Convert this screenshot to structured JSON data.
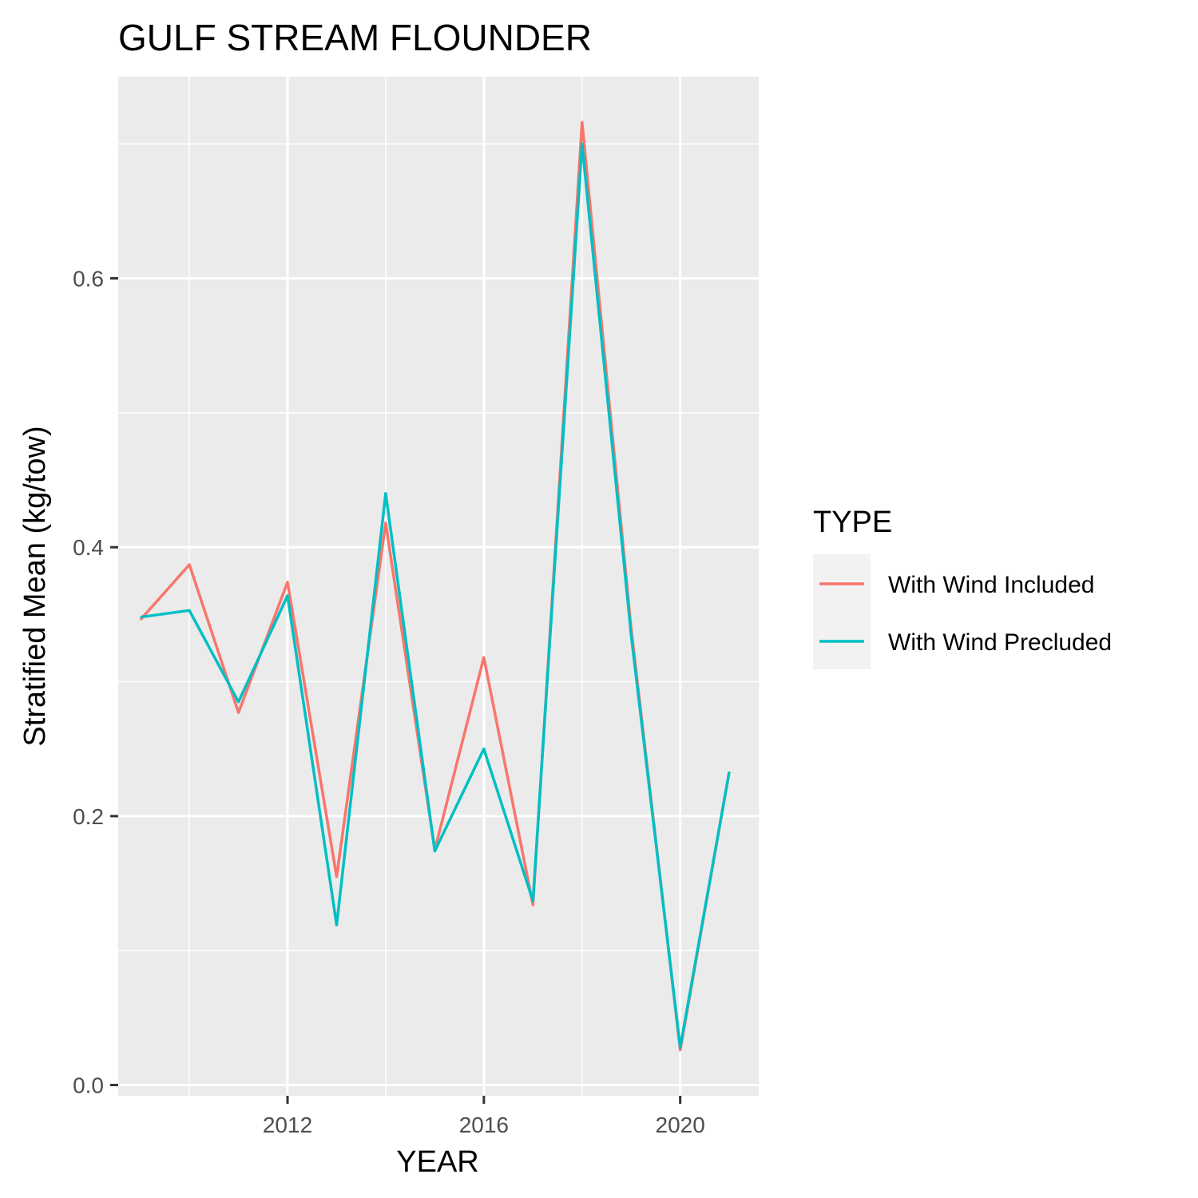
{
  "chart_data": {
    "type": "line",
    "title": "GULF STREAM FLOUNDER",
    "xlabel": "YEAR",
    "ylabel": "Stratified Mean (kg/tow)",
    "x": [
      2009,
      2010,
      2011,
      2012,
      2013,
      2014,
      2015,
      2016,
      2017,
      2018,
      2019,
      2020,
      2021
    ],
    "xlim": [
      2008.55,
      2021.6
    ],
    "ylim": [
      -0.008,
      0.75
    ],
    "x_major_ticks": [
      2012,
      2016,
      2020
    ],
    "x_minor_ticks": [
      2010,
      2014,
      2018
    ],
    "y_major_ticks": [
      0.0,
      0.2,
      0.4,
      0.6
    ],
    "y_minor_ticks": [
      0.1,
      0.3,
      0.5,
      0.7
    ],
    "x_tick_labels": [
      "2012",
      "2016",
      "2020"
    ],
    "y_tick_labels": [
      "0.0",
      "0.2",
      "0.4",
      "0.6"
    ],
    "grid": true,
    "legend": {
      "title": "TYPE",
      "placement": "right"
    },
    "series": [
      {
        "name": "With Wind Included",
        "color": "#F8766D",
        "values": [
          0.346,
          0.387,
          0.277,
          0.374,
          0.155,
          0.418,
          0.175,
          0.318,
          0.134,
          0.716,
          0.34,
          0.026,
          0.233
        ]
      },
      {
        "name": "With Wind Precluded",
        "color": "#00BFC4",
        "values": [
          0.348,
          0.353,
          0.285,
          0.364,
          0.119,
          0.44,
          0.174,
          0.25,
          0.137,
          0.7,
          0.335,
          0.028,
          0.233
        ]
      }
    ]
  }
}
